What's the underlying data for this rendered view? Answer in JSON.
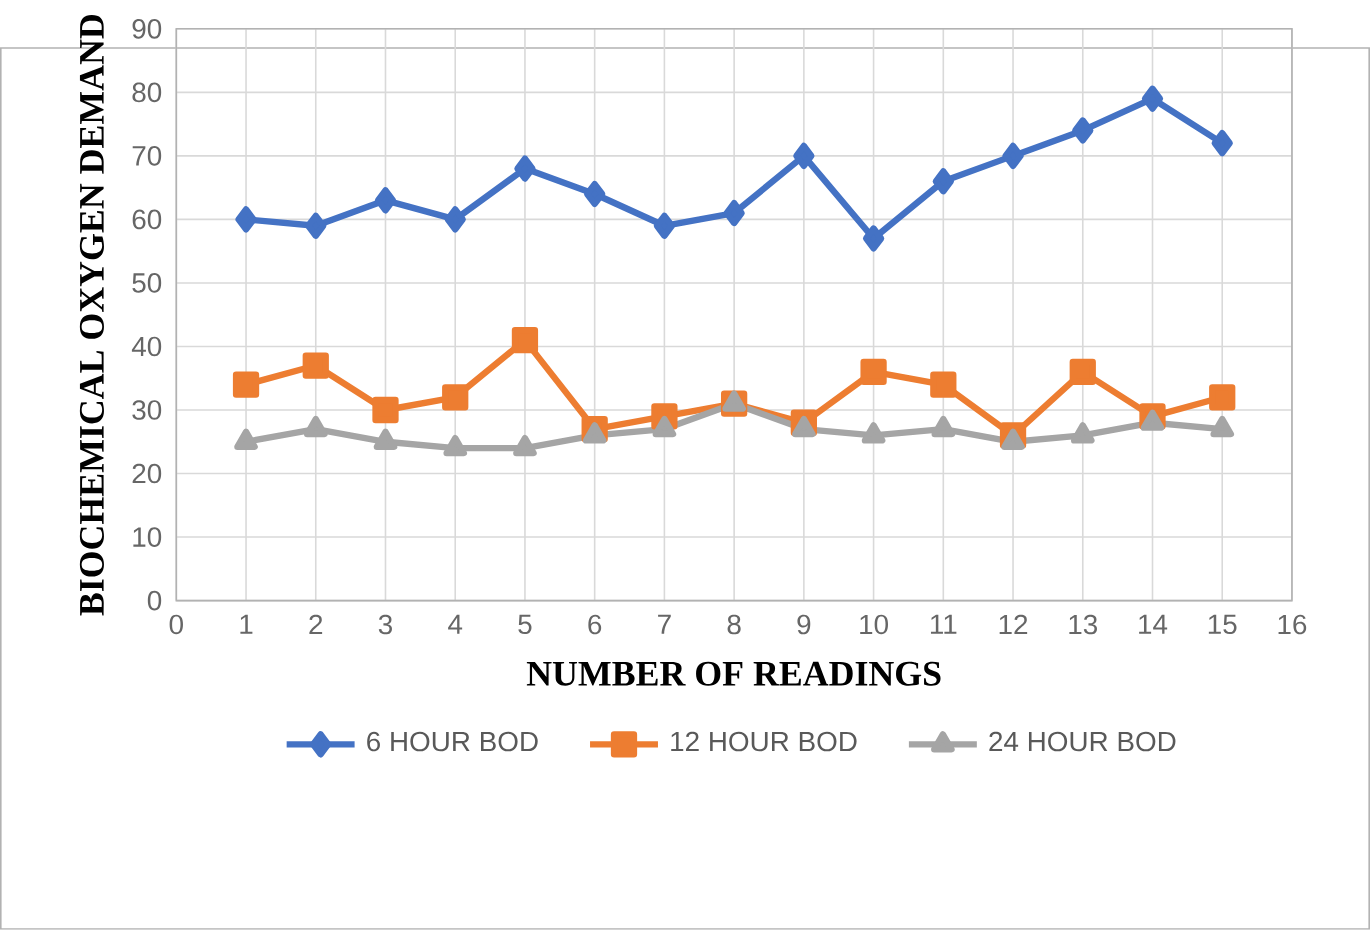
{
  "chart_data": {
    "type": "line",
    "xlabel": "NUMBER OF READINGS",
    "ylabel": "BIOCHEMICAL OXYGEN DEMAND",
    "x": [
      1,
      2,
      3,
      4,
      5,
      6,
      7,
      8,
      9,
      10,
      11,
      12,
      13,
      14,
      15
    ],
    "series": [
      {
        "name": "6 HOUR BOD",
        "color": "#4472c4",
        "marker": "diamond",
        "values": [
          60,
          59,
          63,
          60,
          68,
          64,
          59,
          61,
          70,
          57,
          66,
          70,
          74,
          79,
          72
        ]
      },
      {
        "name": "12 HOUR BOD",
        "color": "#ed7d31",
        "marker": "square",
        "values": [
          34,
          37,
          30,
          32,
          41,
          27,
          29,
          31,
          28,
          36,
          34,
          26,
          36,
          29,
          32
        ]
      },
      {
        "name": "24 HOUR BOD",
        "color": "#a5a5a5",
        "marker": "triangle",
        "values": [
          25,
          27,
          25,
          24,
          24,
          26,
          27,
          31,
          27,
          26,
          27,
          25,
          26,
          28,
          27
        ]
      }
    ],
    "xlim": [
      0,
      16
    ],
    "xticks": [
      0,
      1,
      2,
      3,
      4,
      5,
      6,
      7,
      8,
      9,
      10,
      11,
      12,
      13,
      14,
      15,
      16
    ],
    "ylim": [
      0,
      90
    ],
    "yticks": [
      0,
      10,
      20,
      30,
      40,
      50,
      60,
      70,
      80,
      90
    ],
    "grid": true,
    "legend": "bottom",
    "line_style": "solid"
  }
}
